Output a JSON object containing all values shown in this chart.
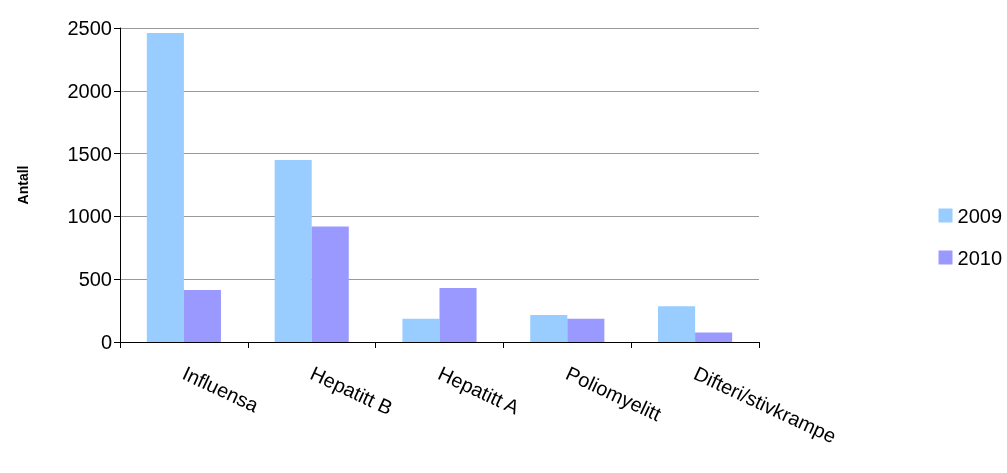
{
  "chart_data": {
    "type": "bar",
    "ylabel": "Antall",
    "categories": [
      "Influensa",
      "Hepatitt B",
      "Hepatitt A",
      "Poliomyelitt",
      "Difteri/stivkrampe"
    ],
    "series": [
      {
        "name": "2009",
        "color": "#99ccff",
        "values": [
          2460,
          1450,
          185,
          215,
          285
        ]
      },
      {
        "name": "2010",
        "color": "#9999ff",
        "values": [
          415,
          920,
          430,
          185,
          75
        ]
      }
    ],
    "ylim": [
      0,
      2500
    ],
    "yticks": [
      0,
      500,
      1000,
      1500,
      2000,
      2500
    ],
    "grid": "y",
    "legend": "right"
  }
}
